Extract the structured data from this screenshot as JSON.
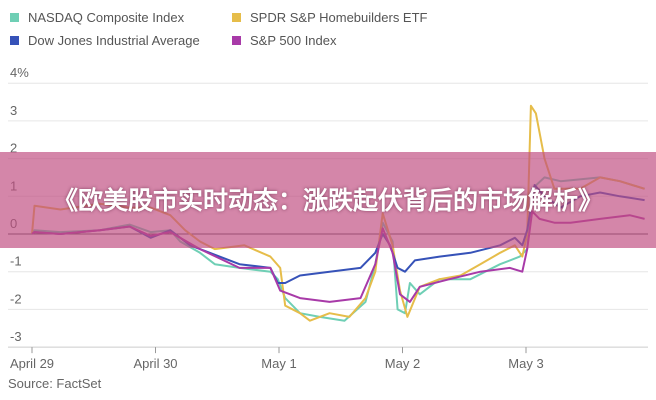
{
  "banner": {
    "title": "《欧美股市实时动态：涨跌起伏背后的市场解析》"
  },
  "chart_data": {
    "type": "line",
    "title": "",
    "ylim": [
      -3,
      4
    ],
    "yticks": [
      "4%",
      "3",
      "2",
      "1",
      "0",
      "-1",
      "-2",
      "-3"
    ],
    "ytick_values": [
      4,
      3,
      2,
      1,
      0,
      -1,
      -2,
      -3
    ],
    "xticks": [
      {
        "label": "April 29",
        "value": 0
      },
      {
        "label": "April 30",
        "value": 1
      },
      {
        "label": "May 1",
        "value": 2
      },
      {
        "label": "May 2",
        "value": 3
      },
      {
        "label": "May 3",
        "value": 4
      }
    ],
    "xlim": [
      0,
      4.96
    ],
    "grid": true,
    "legend_position": "top",
    "source": "Source: FactSet",
    "series": [
      {
        "name": "NASDAQ Composite Index",
        "color": "#6fcfb5",
        "points": [
          [
            0,
            0
          ],
          [
            0.02,
            0.1
          ],
          [
            0.23,
            0.05
          ],
          [
            0.55,
            0.1
          ],
          [
            0.79,
            0.25
          ],
          [
            0.96,
            0.05
          ],
          [
            1.12,
            0.1
          ],
          [
            1.2,
            -0.2
          ],
          [
            1.36,
            -0.5
          ],
          [
            1.48,
            -0.8
          ],
          [
            1.68,
            -0.9
          ],
          [
            1.93,
            -1.0
          ],
          [
            1.99,
            -1.2
          ],
          [
            2.05,
            -1.7
          ],
          [
            2.17,
            -2.1
          ],
          [
            2.33,
            -2.2
          ],
          [
            2.53,
            -2.3
          ],
          [
            2.7,
            -1.8
          ],
          [
            2.78,
            -0.8
          ],
          [
            2.84,
            0.3
          ],
          [
            2.92,
            -0.2
          ],
          [
            2.96,
            -2.0
          ],
          [
            3.02,
            -2.1
          ],
          [
            3.06,
            -1.3
          ],
          [
            3.14,
            -1.6
          ],
          [
            3.3,
            -1.2
          ],
          [
            3.55,
            -1.2
          ],
          [
            3.79,
            -0.8
          ],
          [
            3.95,
            -0.6
          ],
          [
            4.01,
            -0.4
          ],
          [
            4.05,
            1.2
          ],
          [
            4.15,
            1.5
          ],
          [
            4.28,
            1.4
          ],
          [
            4.6,
            1.5
          ],
          [
            4.76,
            1.4
          ],
          [
            4.96,
            1.2
          ]
        ]
      },
      {
        "name": "SPDR S&P Homebuilders ETF",
        "color": "#e6bd4a",
        "points": [
          [
            0,
            0
          ],
          [
            0.02,
            0.75
          ],
          [
            0.23,
            0.65
          ],
          [
            0.55,
            0.8
          ],
          [
            0.79,
            0.7
          ],
          [
            0.96,
            0.7
          ],
          [
            1.12,
            0.5
          ],
          [
            1.24,
            0.1
          ],
          [
            1.36,
            -0.2
          ],
          [
            1.48,
            -0.4
          ],
          [
            1.72,
            -0.3
          ],
          [
            1.93,
            -0.6
          ],
          [
            2.01,
            -0.9
          ],
          [
            2.05,
            -1.9
          ],
          [
            2.17,
            -2.1
          ],
          [
            2.25,
            -2.3
          ],
          [
            2.41,
            -2.1
          ],
          [
            2.57,
            -2.2
          ],
          [
            2.7,
            -1.7
          ],
          [
            2.78,
            -1.0
          ],
          [
            2.84,
            0.55
          ],
          [
            2.92,
            -0.3
          ],
          [
            2.98,
            -1.5
          ],
          [
            3.04,
            -2.2
          ],
          [
            3.14,
            -1.4
          ],
          [
            3.3,
            -1.2
          ],
          [
            3.47,
            -1.1
          ],
          [
            3.63,
            -0.8
          ],
          [
            3.79,
            -0.5
          ],
          [
            3.91,
            -0.3
          ],
          [
            3.97,
            -0.6
          ],
          [
            4.01,
            0.0
          ],
          [
            4.04,
            3.4
          ],
          [
            4.08,
            3.2
          ],
          [
            4.15,
            2.0
          ],
          [
            4.23,
            1.2
          ],
          [
            4.44,
            1.2
          ],
          [
            4.6,
            1.5
          ],
          [
            4.76,
            1.4
          ],
          [
            4.96,
            1.2
          ]
        ]
      },
      {
        "name": "Dow Jones Industrial Average",
        "color": "#3652b8",
        "points": [
          [
            0,
            0
          ],
          [
            0.02,
            0.05
          ],
          [
            0.23,
            0.0
          ],
          [
            0.55,
            0.1
          ],
          [
            0.79,
            0.2
          ],
          [
            0.96,
            -0.1
          ],
          [
            1.12,
            0.1
          ],
          [
            1.28,
            -0.3
          ],
          [
            1.44,
            -0.5
          ],
          [
            1.68,
            -0.8
          ],
          [
            1.93,
            -0.9
          ],
          [
            1.99,
            -1.3
          ],
          [
            2.05,
            -1.3
          ],
          [
            2.17,
            -1.1
          ],
          [
            2.41,
            -1.0
          ],
          [
            2.66,
            -0.9
          ],
          [
            2.78,
            -0.5
          ],
          [
            2.84,
            0.0
          ],
          [
            2.9,
            -0.3
          ],
          [
            2.96,
            -0.9
          ],
          [
            3.02,
            -1.0
          ],
          [
            3.1,
            -0.7
          ],
          [
            3.3,
            -0.6
          ],
          [
            3.55,
            -0.5
          ],
          [
            3.79,
            -0.3
          ],
          [
            3.91,
            -0.1
          ],
          [
            3.97,
            -0.3
          ],
          [
            4.01,
            0.1
          ],
          [
            4.07,
            1.3
          ],
          [
            4.15,
            1.0
          ],
          [
            4.28,
            0.7
          ],
          [
            4.44,
            1.0
          ],
          [
            4.6,
            1.1
          ],
          [
            4.76,
            1.0
          ],
          [
            4.96,
            0.9
          ]
        ]
      },
      {
        "name": "S&P 500 Index",
        "color": "#a83aa8",
        "points": [
          [
            0,
            0
          ],
          [
            0.02,
            0.05
          ],
          [
            0.23,
            0.0
          ],
          [
            0.55,
            0.1
          ],
          [
            0.79,
            0.2
          ],
          [
            0.96,
            -0.05
          ],
          [
            1.12,
            0.05
          ],
          [
            1.36,
            -0.4
          ],
          [
            1.68,
            -0.9
          ],
          [
            1.93,
            -0.9
          ],
          [
            2.01,
            -1.5
          ],
          [
            2.17,
            -1.7
          ],
          [
            2.41,
            -1.8
          ],
          [
            2.66,
            -1.7
          ],
          [
            2.78,
            -0.8
          ],
          [
            2.84,
            0.15
          ],
          [
            2.92,
            -0.5
          ],
          [
            2.98,
            -1.6
          ],
          [
            3.06,
            -1.8
          ],
          [
            3.14,
            -1.4
          ],
          [
            3.38,
            -1.2
          ],
          [
            3.63,
            -1.0
          ],
          [
            3.87,
            -0.9
          ],
          [
            3.97,
            -1.0
          ],
          [
            4.01,
            -0.4
          ],
          [
            4.05,
            0.6
          ],
          [
            4.11,
            0.4
          ],
          [
            4.23,
            0.3
          ],
          [
            4.36,
            0.3
          ],
          [
            4.6,
            0.4
          ],
          [
            4.84,
            0.5
          ],
          [
            4.96,
            0.4
          ]
        ]
      }
    ]
  }
}
